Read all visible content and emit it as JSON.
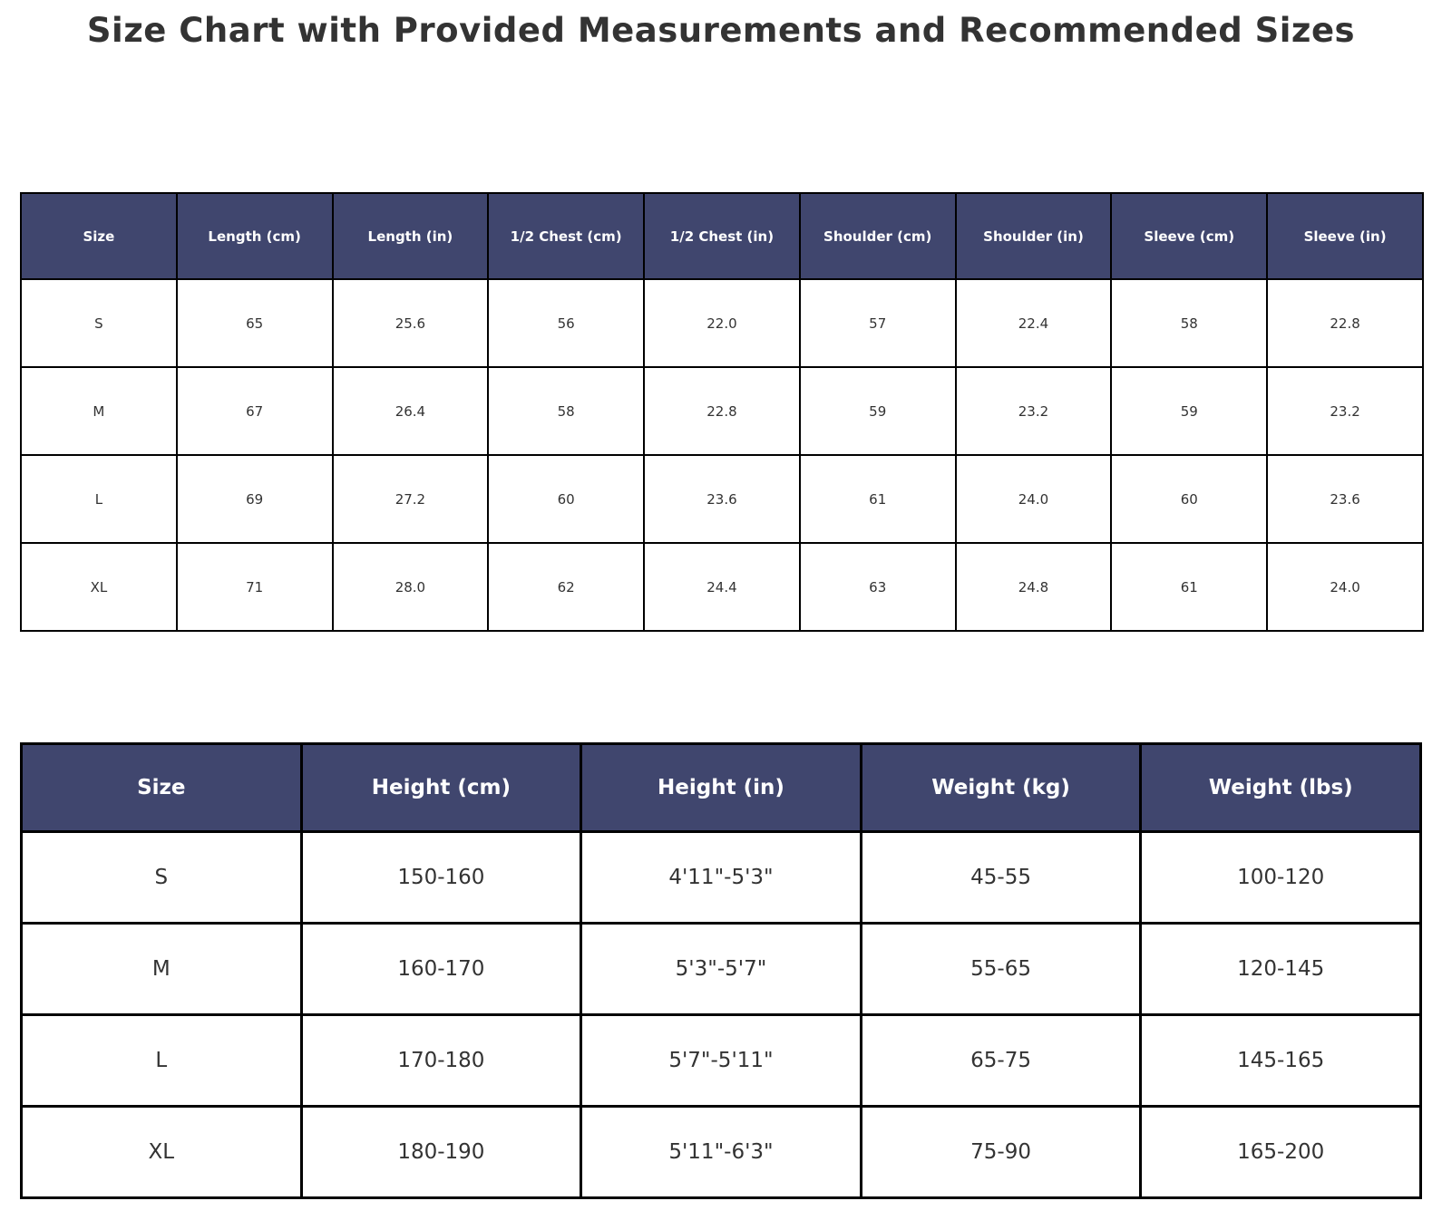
{
  "page": {
    "title": "Size Chart with Provided Measurements and Recommended Sizes"
  },
  "colors": {
    "header_bg": "#40466e",
    "header_text": "#ffffff",
    "cell_text": "#333333",
    "border": "#000000",
    "title_text": "#333333",
    "page_bg": "#ffffff"
  },
  "chart_data": [
    {
      "type": "table",
      "columns": [
        "Size",
        "Length (cm)",
        "Length (in)",
        "1/2 Chest (cm)",
        "1/2 Chest (in)",
        "Shoulder (cm)",
        "Shoulder (in)",
        "Sleeve (cm)",
        "Sleeve (in)"
      ],
      "rows": [
        [
          "S",
          "65",
          "25.6",
          "56",
          "22.0",
          "57",
          "22.4",
          "58",
          "22.8"
        ],
        [
          "M",
          "67",
          "26.4",
          "58",
          "22.8",
          "59",
          "23.2",
          "59",
          "23.2"
        ],
        [
          "L",
          "69",
          "27.2",
          "60",
          "23.6",
          "61",
          "24.0",
          "60",
          "23.6"
        ],
        [
          "XL",
          "71",
          "28.0",
          "62",
          "24.4",
          "63",
          "24.8",
          "61",
          "24.0"
        ]
      ]
    },
    {
      "type": "table",
      "columns": [
        "Size",
        "Height (cm)",
        "Height (in)",
        "Weight (kg)",
        "Weight (lbs)"
      ],
      "rows": [
        [
          "S",
          "150-160",
          "4'11\"-5'3\"",
          "45-55",
          "100-120"
        ],
        [
          "M",
          "160-170",
          "5'3\"-5'7\"",
          "55-65",
          "120-145"
        ],
        [
          "L",
          "170-180",
          "5'7\"-5'11\"",
          "65-75",
          "145-165"
        ],
        [
          "XL",
          "180-190",
          "5'11\"-6'3\"",
          "75-90",
          "165-200"
        ]
      ]
    }
  ]
}
